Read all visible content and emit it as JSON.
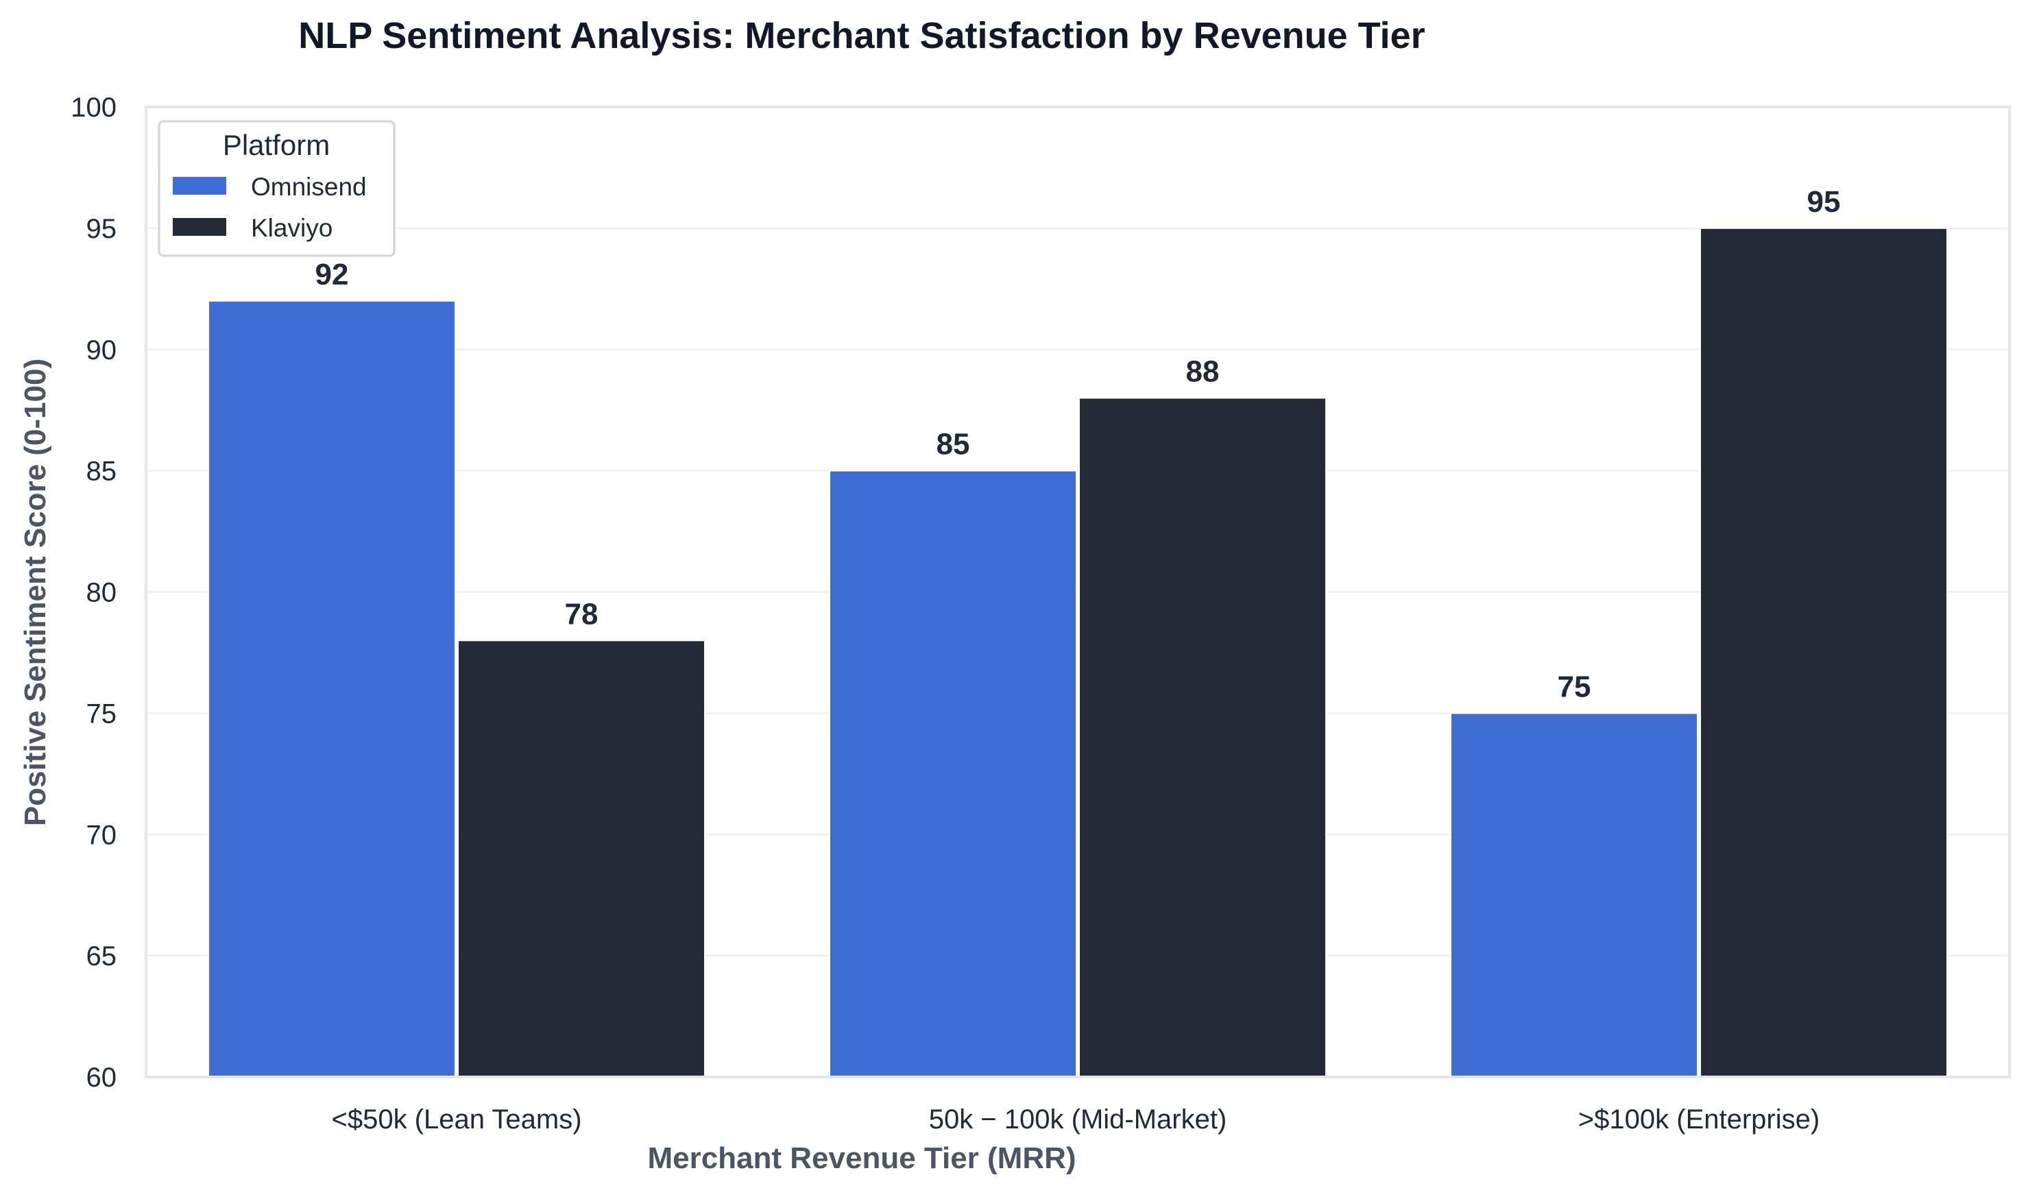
{
  "chart_data": {
    "type": "bar",
    "title": "NLP Sentiment Analysis: Merchant Satisfaction by Revenue Tier",
    "xlabel": "Merchant Revenue Tier (MRR)",
    "ylabel": "Positive Sentiment Score (0-100)",
    "ylim": [
      60,
      100
    ],
    "yticks": [
      "60",
      "65",
      "70",
      "75",
      "80",
      "85",
      "90",
      "95",
      "100"
    ],
    "categories": [
      "<$50k (Lean Teams)",
      "50k − 100k (Mid-Market)",
      ">$100k (Enterprise)"
    ],
    "legend": {
      "title": "Platform",
      "placement": "top-left"
    },
    "grid": "horizontal",
    "series": [
      {
        "name": "Omnisend",
        "color": "#3f6dd4",
        "values": [
          92,
          85,
          75
        ]
      },
      {
        "name": "Klaviyo",
        "color": "#232a35",
        "values": [
          78,
          88,
          95
        ]
      }
    ]
  }
}
